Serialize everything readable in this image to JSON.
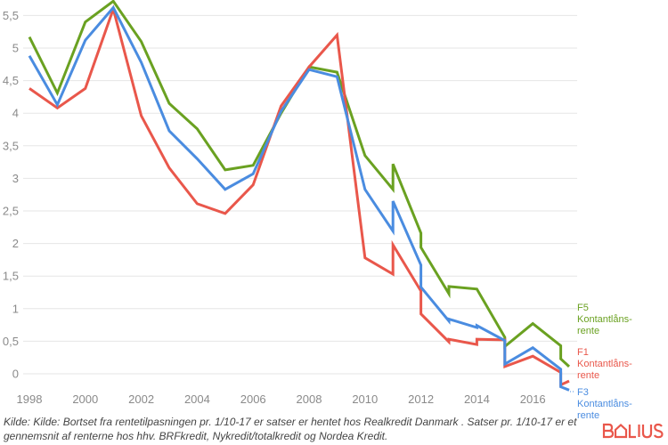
{
  "chart_data": {
    "type": "line",
    "title": "",
    "xlabel": "",
    "ylabel": "",
    "xlim": [
      1998,
      2017.3
    ],
    "ylim": [
      0,
      5.7
    ],
    "grid": true,
    "y_ticks": [
      "0",
      "0,5",
      "1",
      "1,5",
      "2",
      "2,5",
      "3",
      "3,5",
      "4",
      "4,5",
      "5",
      "5,5"
    ],
    "y_tick_values": [
      0,
      0.5,
      1,
      1.5,
      2,
      2.5,
      3,
      3.5,
      4,
      4.5,
      5,
      5.5
    ],
    "x_ticks": [
      "1998",
      "2000",
      "2002",
      "2004",
      "2006",
      "2008",
      "2010",
      "2012",
      "2014",
      "2016"
    ],
    "x_tick_values": [
      1998,
      2000,
      2002,
      2004,
      2006,
      2008,
      2010,
      2012,
      2014,
      2016
    ],
    "legend": "inline-right",
    "series": [
      {
        "name": "F5",
        "label_line1": "F5",
        "label_line2": "Kontantlåns-",
        "label_line3": "rente",
        "color": "#6aa121",
        "x": [
          1998,
          1999,
          2000,
          2001,
          2002,
          2003,
          2004,
          2005,
          2006,
          2007,
          2008,
          2009,
          2010,
          2011,
          2011,
          2012,
          2012,
          2013,
          2013,
          2014,
          2015,
          2015,
          2016,
          2017,
          2017,
          2017.3
        ],
        "y": [
          5.17,
          4.31,
          5.4,
          5.72,
          5.1,
          4.15,
          3.76,
          3.13,
          3.2,
          4.0,
          4.71,
          4.63,
          3.35,
          2.83,
          3.22,
          2.16,
          1.94,
          1.23,
          1.34,
          1.3,
          0.56,
          0.42,
          0.77,
          0.43,
          0.23,
          0.11
        ]
      },
      {
        "name": "F1",
        "label_line1": "F1",
        "label_line2": "Kontantlåns-",
        "label_line3": "rente",
        "color": "#e9574b",
        "x": [
          1998,
          1999,
          2000,
          2001,
          2002,
          2003,
          2004,
          2005,
          2006,
          2007,
          2008,
          2009,
          2010,
          2011,
          2011,
          2012,
          2012,
          2013,
          2013,
          2014,
          2014,
          2015,
          2015,
          2016,
          2017,
          2017,
          2017.3
        ],
        "y": [
          4.38,
          4.08,
          4.38,
          5.6,
          3.96,
          3.16,
          2.61,
          2.46,
          2.9,
          4.11,
          4.71,
          5.2,
          1.78,
          1.53,
          1.98,
          1.27,
          0.92,
          0.49,
          0.53,
          0.45,
          0.53,
          0.52,
          0.11,
          0.27,
          0.02,
          -0.17,
          -0.11
        ]
      },
      {
        "name": "F3",
        "label_line1": "F3",
        "label_line2": "Kontantlåns-",
        "label_line3": "rente",
        "color": "#4a8ce0",
        "x": [
          1998,
          1999,
          2000,
          2001,
          2002,
          2003,
          2004,
          2005,
          2006,
          2007,
          2008,
          2009,
          2010,
          2011,
          2011,
          2012,
          2012,
          2013,
          2013,
          2014,
          2014,
          2015,
          2015,
          2016,
          2017,
          2017,
          2017.3
        ],
        "y": [
          4.88,
          4.13,
          5.12,
          5.62,
          4.78,
          3.73,
          3.3,
          2.83,
          3.07,
          4.03,
          4.67,
          4.56,
          2.83,
          2.19,
          2.65,
          1.67,
          1.33,
          0.81,
          0.84,
          0.71,
          0.74,
          0.51,
          0.15,
          0.4,
          0.07,
          -0.2,
          -0.25
        ]
      }
    ]
  },
  "source_text": "Kilde: Kilde: Bortset fra rentetilpasningen pr. 1/10-17 er satser er hentet hos Realkredit Danmark . Satser pr. 1/10-17 er et gennemsnit af renterne hos hhv. BRFkredit, Nykredit/totalkredit og Nordea Kredit.",
  "logo": {
    "text": "BOLIUS",
    "color": "#e9574b"
  }
}
